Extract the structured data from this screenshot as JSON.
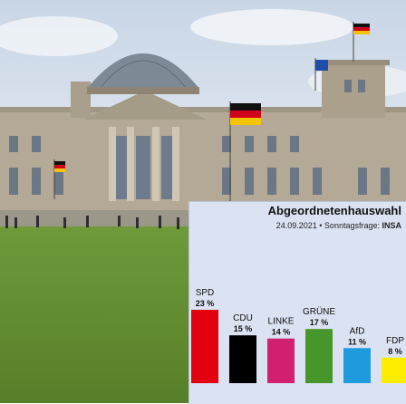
{
  "chart_data": {
    "type": "bar",
    "title": "Abgeordnetenhauswahl",
    "subtitle_date": "24.09.2021",
    "subtitle_sep": " • Sonntagsfrage: ",
    "subtitle_source": "INSA",
    "categories": [
      "SPD",
      "CDU",
      "LINKE",
      "GRÜNE",
      "AfD",
      "FDP"
    ],
    "values": [
      23,
      15,
      14,
      17,
      11,
      8
    ],
    "value_labels": [
      "23 %",
      "15 %",
      "14 %",
      "17 %",
      "11 %",
      "8 %"
    ],
    "colors": [
      "#e3000f",
      "#000000",
      "#d1206f",
      "#46962b",
      "#1e9bdc",
      "#ffed00"
    ],
    "ylim": [
      0,
      25
    ]
  }
}
